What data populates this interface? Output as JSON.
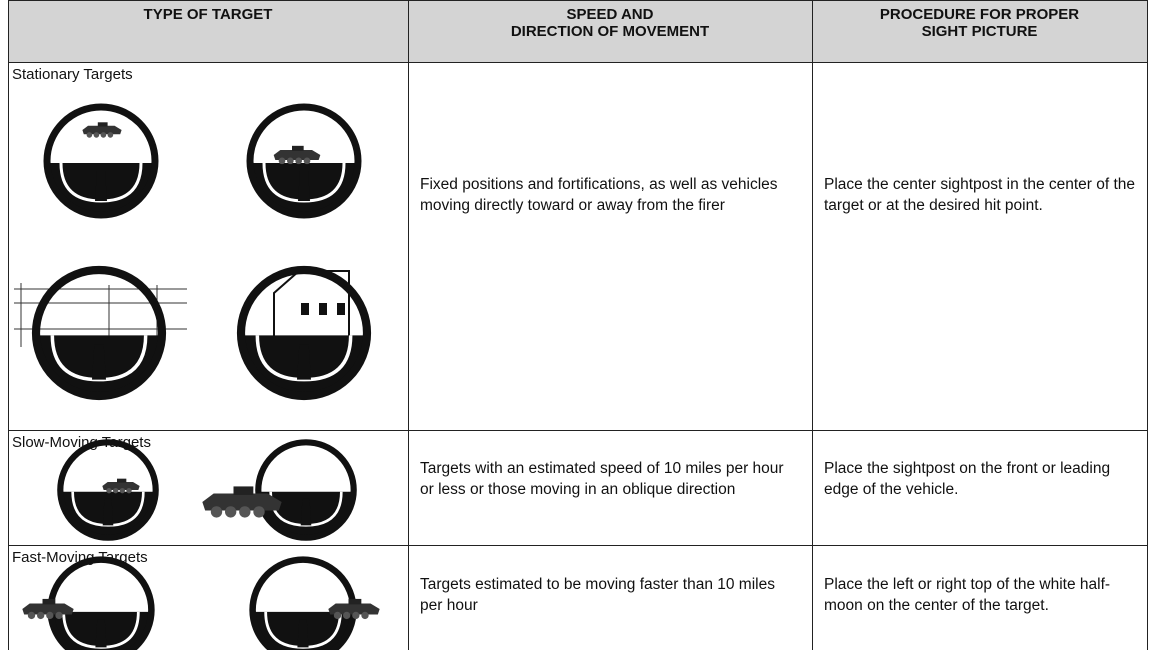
{
  "table": {
    "headers": [
      "TYPE OF TARGET",
      "SPEED AND\nDIRECTION OF MOVEMENT",
      "PROCEDURE FOR PROPER\nSIGHT PICTURE"
    ],
    "rows": [
      [
        "Stationary Targets",
        "Fixed positions and fortifications, as well as vehicles moving directly toward or away from the firer",
        "Place the center sightpost in the center of the target or at the desired hit point."
      ],
      [
        "Slow-Moving Targets",
        "Targets with an estimated speed of 10 miles per hour or less or those moving in an oblique direction",
        "Place the sightpost on the front or leading edge of the vehicle."
      ],
      [
        "Fast-Moving Targets",
        "Targets estimated to be moving faster than 10 miles per hour",
        "Place the left or right top of the white half-moon on the center of the target."
      ]
    ]
  }
}
